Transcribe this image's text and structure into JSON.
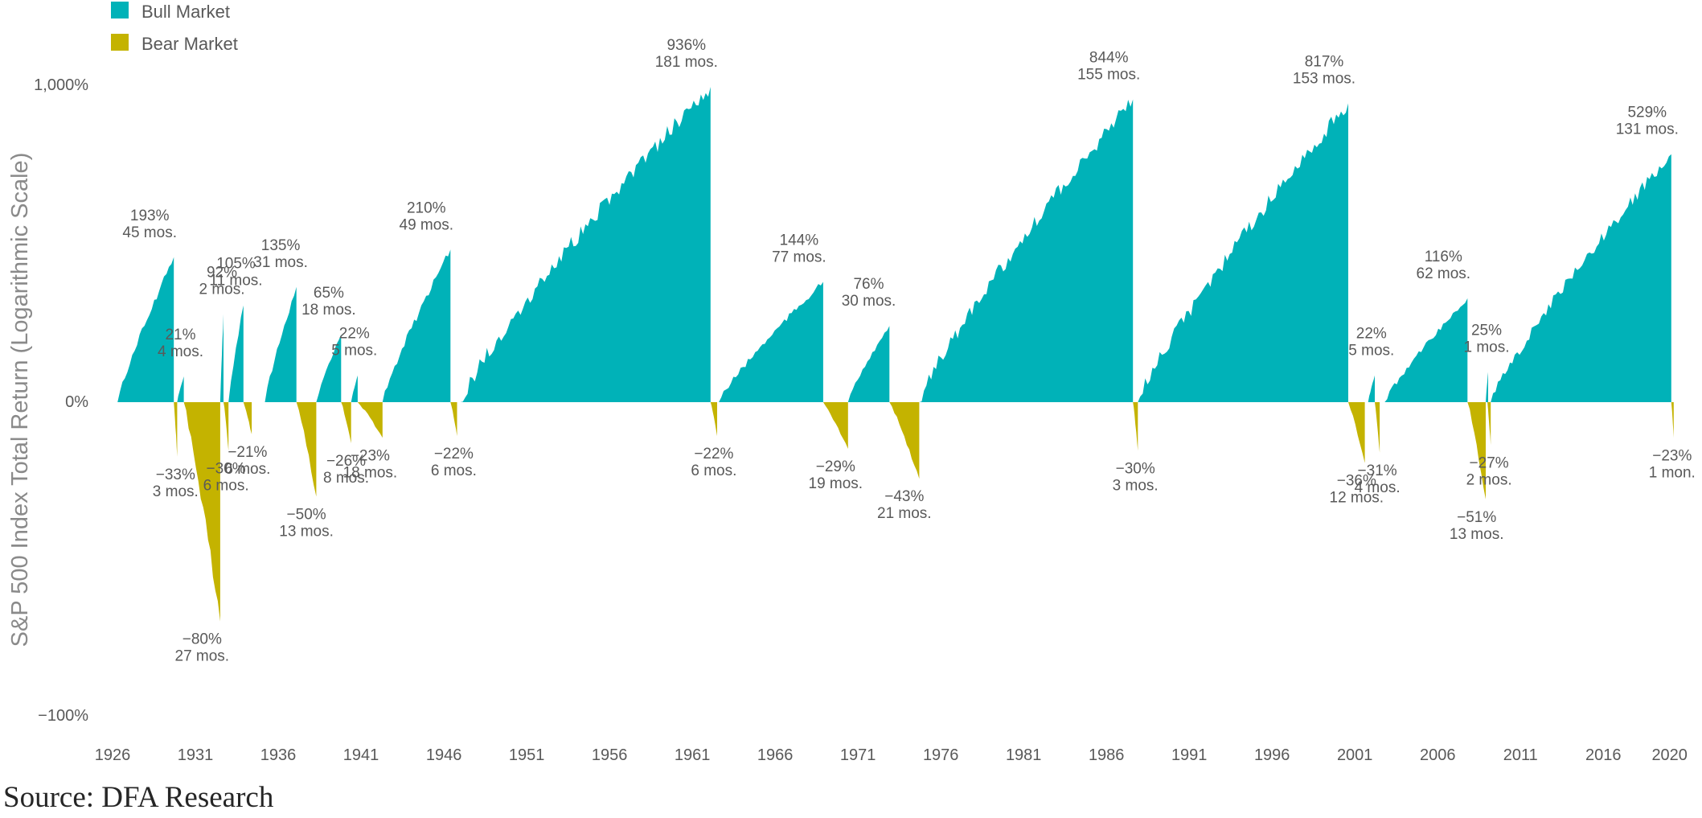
{
  "chart_data": {
    "type": "area",
    "xlabel": "",
    "ylabel": "S&P 500 Index Total Return (Logarithmic Scale)",
    "y_scale": "log",
    "y_ticks": [
      "1,000%",
      "0%",
      "−100%"
    ],
    "x_ticks": [
      "1926",
      "1931",
      "1936",
      "1941",
      "1946",
      "1951",
      "1956",
      "1961",
      "1966",
      "1971",
      "1976",
      "1981",
      "1986",
      "1991",
      "1996",
      "2001",
      "2006",
      "2011",
      "2016",
      "2020"
    ],
    "legend": {
      "position": "top-left",
      "items": [
        {
          "label": "Bull Market",
          "color": "#00b2b8"
        },
        {
          "label": "Bear Market",
          "color": "#c4b300"
        }
      ]
    },
    "series": [
      {
        "name": "Bull Market",
        "color": "#00b2b8",
        "periods": [
          {
            "start": 1926.3,
            "end": 1929.7,
            "return_pct": 193,
            "label": "193%",
            "duration": "45 mos."
          },
          {
            "start": 1929.9,
            "end": 1930.3,
            "return_pct": 21,
            "label": "21%",
            "duration": "4 mos."
          },
          {
            "start": 1932.5,
            "end": 1932.7,
            "return_pct": 92,
            "label": "92%",
            "duration": "2 mos."
          },
          {
            "start": 1933.0,
            "end": 1933.9,
            "return_pct": 105,
            "label": "105%",
            "duration": "11 mos."
          },
          {
            "start": 1935.2,
            "end": 1937.1,
            "return_pct": 135,
            "label": "135%",
            "duration": "31 mos."
          },
          {
            "start": 1938.3,
            "end": 1939.8,
            "return_pct": 65,
            "label": "65%",
            "duration": "18 mos."
          },
          {
            "start": 1940.4,
            "end": 1940.8,
            "return_pct": 22,
            "label": "22%",
            "duration": "5 mos."
          },
          {
            "start": 1942.3,
            "end": 1946.4,
            "return_pct": 210,
            "label": "210%",
            "duration": "49 mos."
          },
          {
            "start": 1947.0,
            "end": 1962.1,
            "return_pct": 936,
            "label": "936%",
            "duration": "181 mos."
          },
          {
            "start": 1962.6,
            "end": 1968.9,
            "return_pct": 144,
            "label": "144%",
            "duration": "77 mos."
          },
          {
            "start": 1970.4,
            "end": 1972.9,
            "return_pct": 76,
            "label": "76%",
            "duration": "30 mos."
          },
          {
            "start": 1974.7,
            "end": 1987.6,
            "return_pct": 844,
            "label": "844%",
            "duration": "155 mos."
          },
          {
            "start": 1987.9,
            "end": 2000.6,
            "return_pct": 817,
            "label": "817%",
            "duration": "153 mos."
          },
          {
            "start": 2001.8,
            "end": 2002.2,
            "return_pct": 22,
            "label": "22%",
            "duration": "5 mos."
          },
          {
            "start": 2002.8,
            "end": 2007.8,
            "return_pct": 116,
            "label": "116%",
            "duration": "62 mos."
          },
          {
            "start": 2008.9,
            "end": 2009.0,
            "return_pct": 25,
            "label": "25%",
            "duration": "1 mos."
          },
          {
            "start": 2009.2,
            "end": 2020.1,
            "return_pct": 529,
            "label": "529%",
            "duration": "131 mos."
          }
        ]
      },
      {
        "name": "Bear Market",
        "color": "#c4b300",
        "periods": [
          {
            "start": 1929.7,
            "end": 1929.9,
            "return_pct": -33,
            "label": "−33%",
            "duration": "3 mos."
          },
          {
            "start": 1930.3,
            "end": 1932.5,
            "return_pct": -80,
            "label": "−80%",
            "duration": "27 mos."
          },
          {
            "start": 1932.7,
            "end": 1933.0,
            "return_pct": -30,
            "label": "−30%",
            "duration": "6 mos."
          },
          {
            "start": 1933.9,
            "end": 1934.4,
            "return_pct": -21,
            "label": "−21%",
            "duration": "6 mos."
          },
          {
            "start": 1937.1,
            "end": 1938.3,
            "return_pct": -50,
            "label": "−50%",
            "duration": "13 mos."
          },
          {
            "start": 1939.8,
            "end": 1940.4,
            "return_pct": -26,
            "label": "−26%",
            "duration": "8 mos."
          },
          {
            "start": 1940.8,
            "end": 1942.3,
            "return_pct": -23,
            "label": "−23%",
            "duration": "18 mos."
          },
          {
            "start": 1946.4,
            "end": 1946.8,
            "return_pct": -22,
            "label": "−22%",
            "duration": "6 mos."
          },
          {
            "start": 1962.1,
            "end": 1962.5,
            "return_pct": -22,
            "label": "−22%",
            "duration": "6 mos."
          },
          {
            "start": 1968.9,
            "end": 1970.4,
            "return_pct": -29,
            "label": "−29%",
            "duration": "19 mos."
          },
          {
            "start": 1972.9,
            "end": 1974.7,
            "return_pct": -43,
            "label": "−43%",
            "duration": "21 mos."
          },
          {
            "start": 1987.6,
            "end": 1987.9,
            "return_pct": -30,
            "label": "−30%",
            "duration": "3 mos."
          },
          {
            "start": 2000.6,
            "end": 2001.6,
            "return_pct": -36,
            "label": "−36%",
            "duration": "12 mos."
          },
          {
            "start": 2002.2,
            "end": 2002.5,
            "return_pct": -31,
            "label": "−31%",
            "duration": "4 mos."
          },
          {
            "start": 2007.8,
            "end": 2008.9,
            "return_pct": -51,
            "label": "−51%",
            "duration": "13 mos."
          },
          {
            "start": 2009.0,
            "end": 2009.2,
            "return_pct": -27,
            "label": "−27%",
            "duration": "2 mos."
          },
          {
            "start": 2020.1,
            "end": 2020.2,
            "return_pct": -23,
            "label": "−23%",
            "duration": "1 mon."
          }
        ]
      }
    ]
  },
  "source": "Source: DFA Research"
}
